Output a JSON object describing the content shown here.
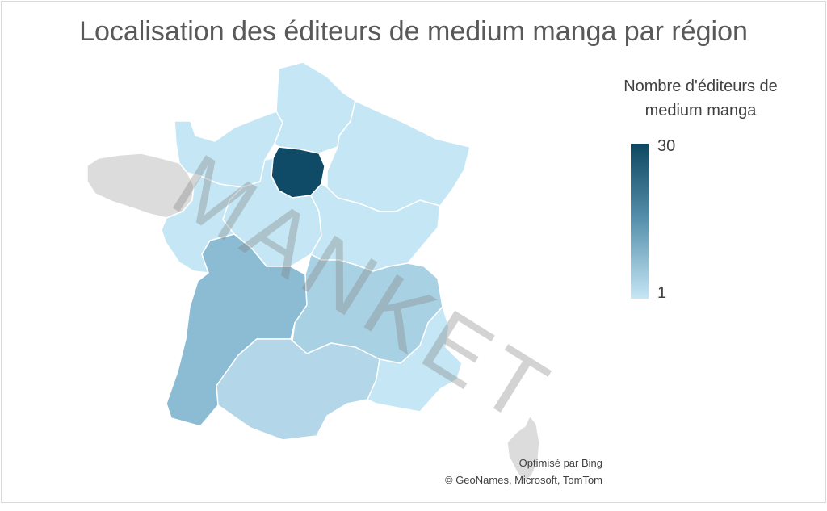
{
  "title": "Localisation des éditeurs de medium manga par région",
  "legend": {
    "title": "Nombre d'éditeurs de medium manga",
    "max_label": "30",
    "min_label": "1",
    "max_color": "#0d4760",
    "min_color": "#c5e6f5"
  },
  "credits": {
    "provider": "Optimisé par Bing",
    "sources": "© GeoNames, Microsoft, TomTom"
  },
  "watermark": "MANKET",
  "colors": {
    "no_data": "#dcdcdc",
    "region_border": "#ffffff"
  },
  "regions": [
    {
      "name": "Île-de-France",
      "color": "#0f4a66"
    },
    {
      "name": "Hauts-de-France",
      "color": "#c5e6f5"
    },
    {
      "name": "Normandie",
      "color": "#c5e6f5"
    },
    {
      "name": "Grand Est",
      "color": "#c5e6f5"
    },
    {
      "name": "Centre-Val de Loire",
      "color": "#c5e6f5"
    },
    {
      "name": "Pays de la Loire",
      "color": "#c5e6f5"
    },
    {
      "name": "Bretagne",
      "color": "#dcdcdc"
    },
    {
      "name": "Bourgogne-Franche-Comté",
      "color": "#c5e6f5"
    },
    {
      "name": "Nouvelle-Aquitaine",
      "color": "#8cbcd3"
    },
    {
      "name": "Auvergne-Rhône-Alpes",
      "color": "#a9d1e4"
    },
    {
      "name": "Occitanie",
      "color": "#b3d7e9"
    },
    {
      "name": "Provence-Alpes-Côte d'Azur",
      "color": "#c5e6f5"
    },
    {
      "name": "Corse",
      "color": "#dcdcdc"
    }
  ]
}
